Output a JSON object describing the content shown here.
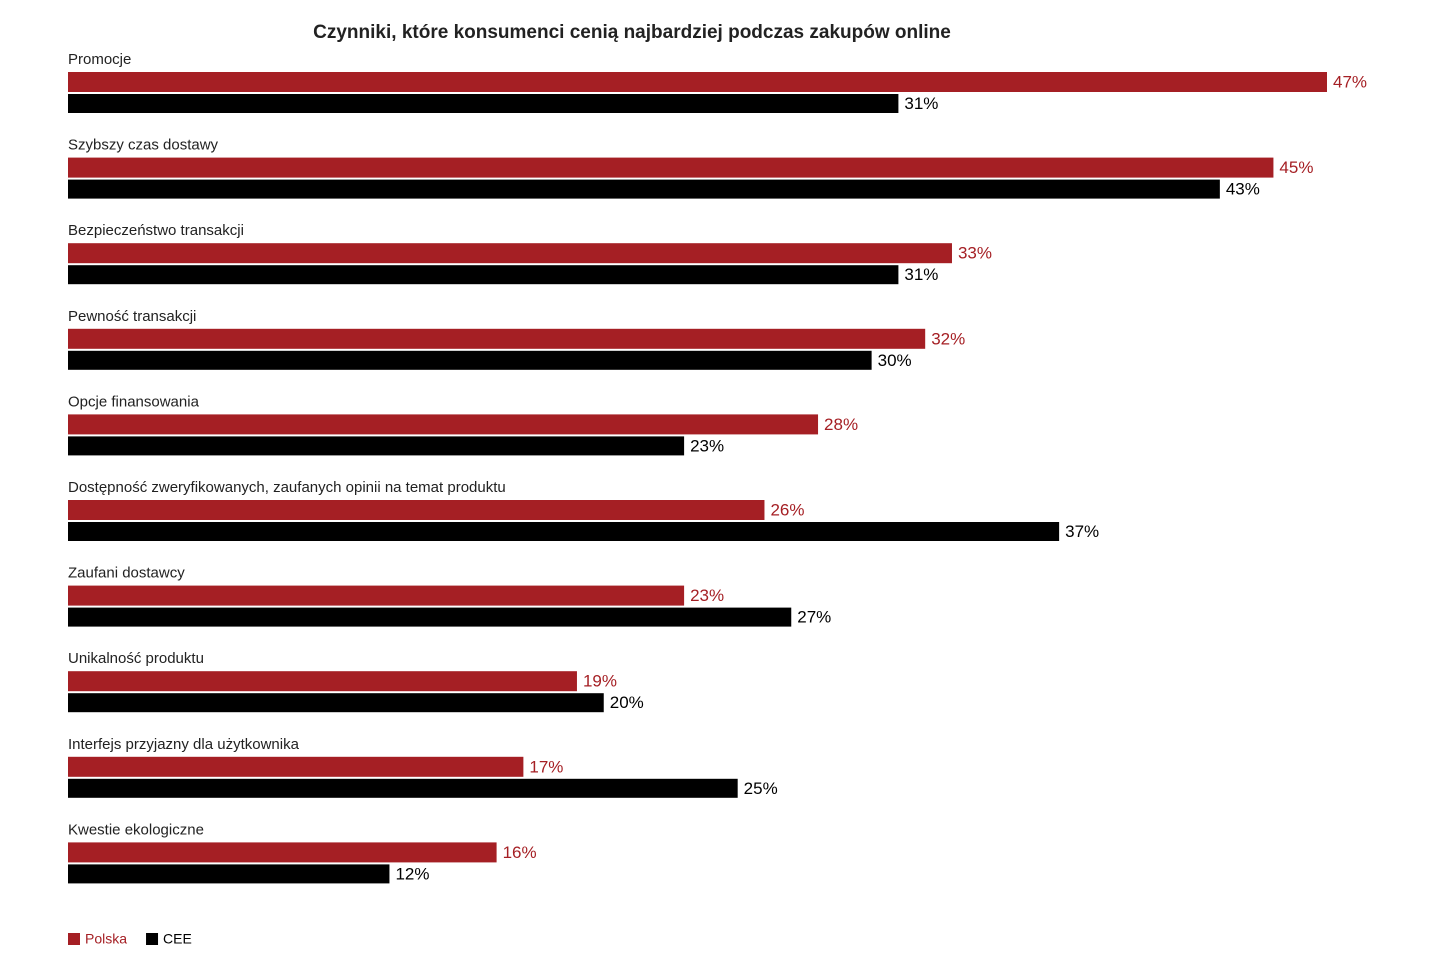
{
  "chart_data": {
    "type": "hbar",
    "title": "Czynniki, które konsumenci cenią najbardziej podczas zakupów online",
    "categories": [
      "Promocje",
      "Szybszy czas dostawy",
      "Bezpieczeństwo transakcji",
      "Pewność transakcji",
      "Opcje finansowania",
      "Dostępność zweryfikowanych, zaufanych opinii na temat produktu",
      "Zaufani dostawcy",
      "Unikalność produktu",
      "Interfejs przyjazny dla użytkownika",
      "Kwestie ekologiczne"
    ],
    "series": [
      {
        "name": "Polska",
        "color": "#a51f24",
        "values": [
          47,
          45,
          33,
          32,
          28,
          26,
          23,
          19,
          17,
          16
        ],
        "value_labels": [
          "47%",
          "45%",
          "33%",
          "32%",
          "28%",
          "26%",
          "23%",
          "19%",
          "17%",
          "16%"
        ]
      },
      {
        "name": "CEE",
        "color": "#000000",
        "values": [
          31,
          43,
          31,
          30,
          23,
          37,
          27,
          20,
          25,
          12
        ],
        "value_labels": [
          "31%",
          "43%",
          "31%",
          "30%",
          "23%",
          "37%",
          "27%",
          "20%",
          "25%",
          "12%"
        ]
      }
    ],
    "legend": "bottom-left"
  }
}
